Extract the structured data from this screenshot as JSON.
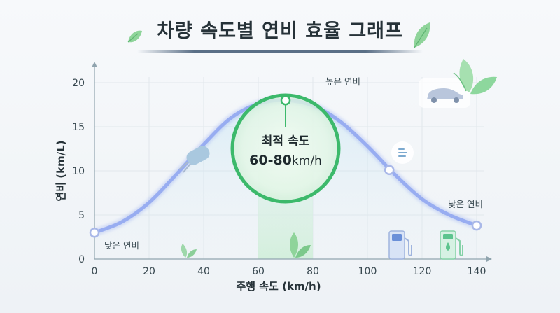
{
  "title": "차량 속도별 연비 효율 그래프",
  "chart_data": {
    "type": "line",
    "xlabel": "주행 속도 (km/h)",
    "ylabel": "연비 (km/L)",
    "xlim": [
      0,
      140
    ],
    "ylim": [
      0,
      20
    ],
    "xticks": [
      0,
      20,
      40,
      60,
      80,
      100,
      120,
      140
    ],
    "yticks": [
      0,
      5,
      10,
      15,
      20
    ],
    "grid": true,
    "series": [
      {
        "x": [
          0,
          10,
          20,
          30,
          40,
          50,
          60,
          70,
          80,
          90,
          100,
          110,
          120,
          130,
          140
        ],
        "values": [
          3.0,
          4.2,
          6.4,
          9.6,
          13.0,
          16.0,
          17.6,
          18.0,
          17.4,
          15.6,
          12.8,
          9.6,
          6.8,
          5.0,
          3.8
        ]
      }
    ],
    "highlight": {
      "x": [
        60,
        80
      ],
      "label_title": "최적 속도",
      "label_range": "60-80",
      "label_unit": "km/h"
    },
    "annotations": [
      {
        "text": "높은 연비",
        "x": 70,
        "y": 18
      },
      {
        "text": "낮은 연비",
        "x": 140,
        "y": 3.8
      },
      {
        "text": "낮은 연비",
        "x": 0,
        "y": 3.0
      }
    ],
    "marked_points": [
      {
        "x": 0,
        "y": 3.0
      },
      {
        "x": 70,
        "y": 18.0
      },
      {
        "x": 108,
        "y": 10.1
      },
      {
        "x": 140,
        "y": 3.8
      }
    ]
  },
  "icons": {
    "leaf": "leaf-icon",
    "car": "car-icon",
    "fuel_pump": "fuel-pump-icon",
    "ev_charger": "ev-charger-icon",
    "menu": "menu-icon"
  },
  "colors": {
    "curve": "#8ea5f0",
    "highlight_circle": "#3cb96b",
    "highlight_band": "#e3f5e6",
    "leaf": "#7ccf8a",
    "fuel_pump": "#6a8fd8",
    "ev_charger": "#5cc48e"
  }
}
